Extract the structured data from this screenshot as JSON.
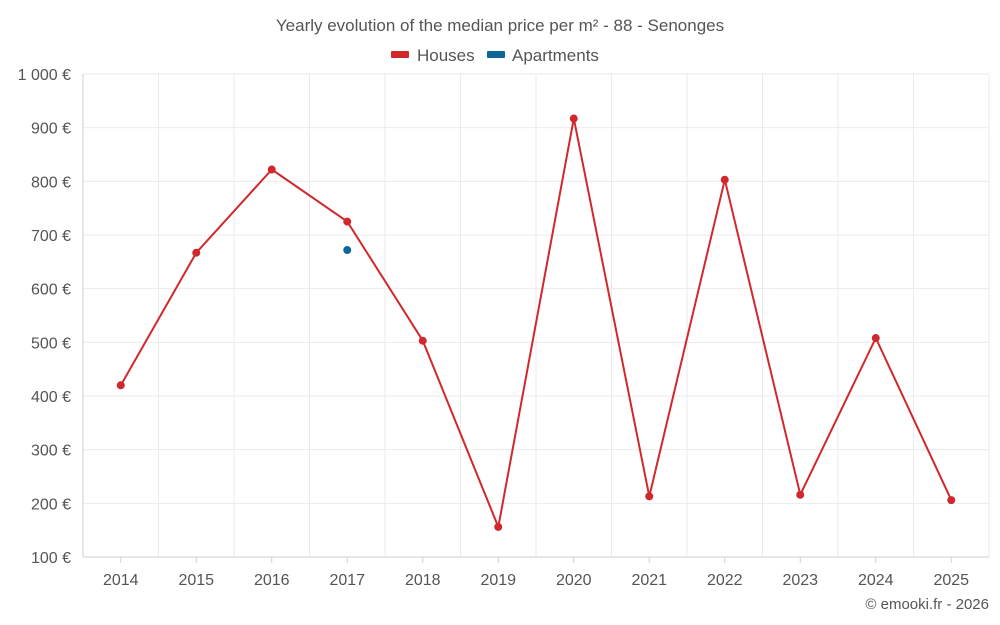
{
  "chart_data": {
    "type": "line",
    "title": "Yearly evolution of the median price per m² - 88 - Senonges",
    "categories": [
      "2014",
      "2015",
      "2016",
      "2017",
      "2018",
      "2019",
      "2020",
      "2021",
      "2022",
      "2023",
      "2024",
      "2025"
    ],
    "series": [
      {
        "name": "Houses",
        "color": "#d0282d",
        "values": [
          420,
          667,
          822,
          725,
          503,
          156,
          917,
          213,
          803,
          216,
          508,
          206
        ]
      },
      {
        "name": "Apartments",
        "color": "#0f6499",
        "values": [
          null,
          null,
          null,
          672,
          null,
          null,
          null,
          null,
          null,
          null,
          null,
          null
        ]
      }
    ],
    "y_ticks": [
      100,
      200,
      300,
      400,
      500,
      600,
      700,
      800,
      900,
      1000
    ],
    "y_tick_labels": [
      "100 €",
      "200 €",
      "300 €",
      "400 €",
      "500 €",
      "600 €",
      "700 €",
      "800 €",
      "900 €",
      "1 000 €"
    ],
    "ylim": [
      100,
      1000
    ],
    "xlabel": "",
    "ylabel": "",
    "grid": true,
    "legend_position": "top-center"
  },
  "credit": "© emooki.fr - 2026"
}
